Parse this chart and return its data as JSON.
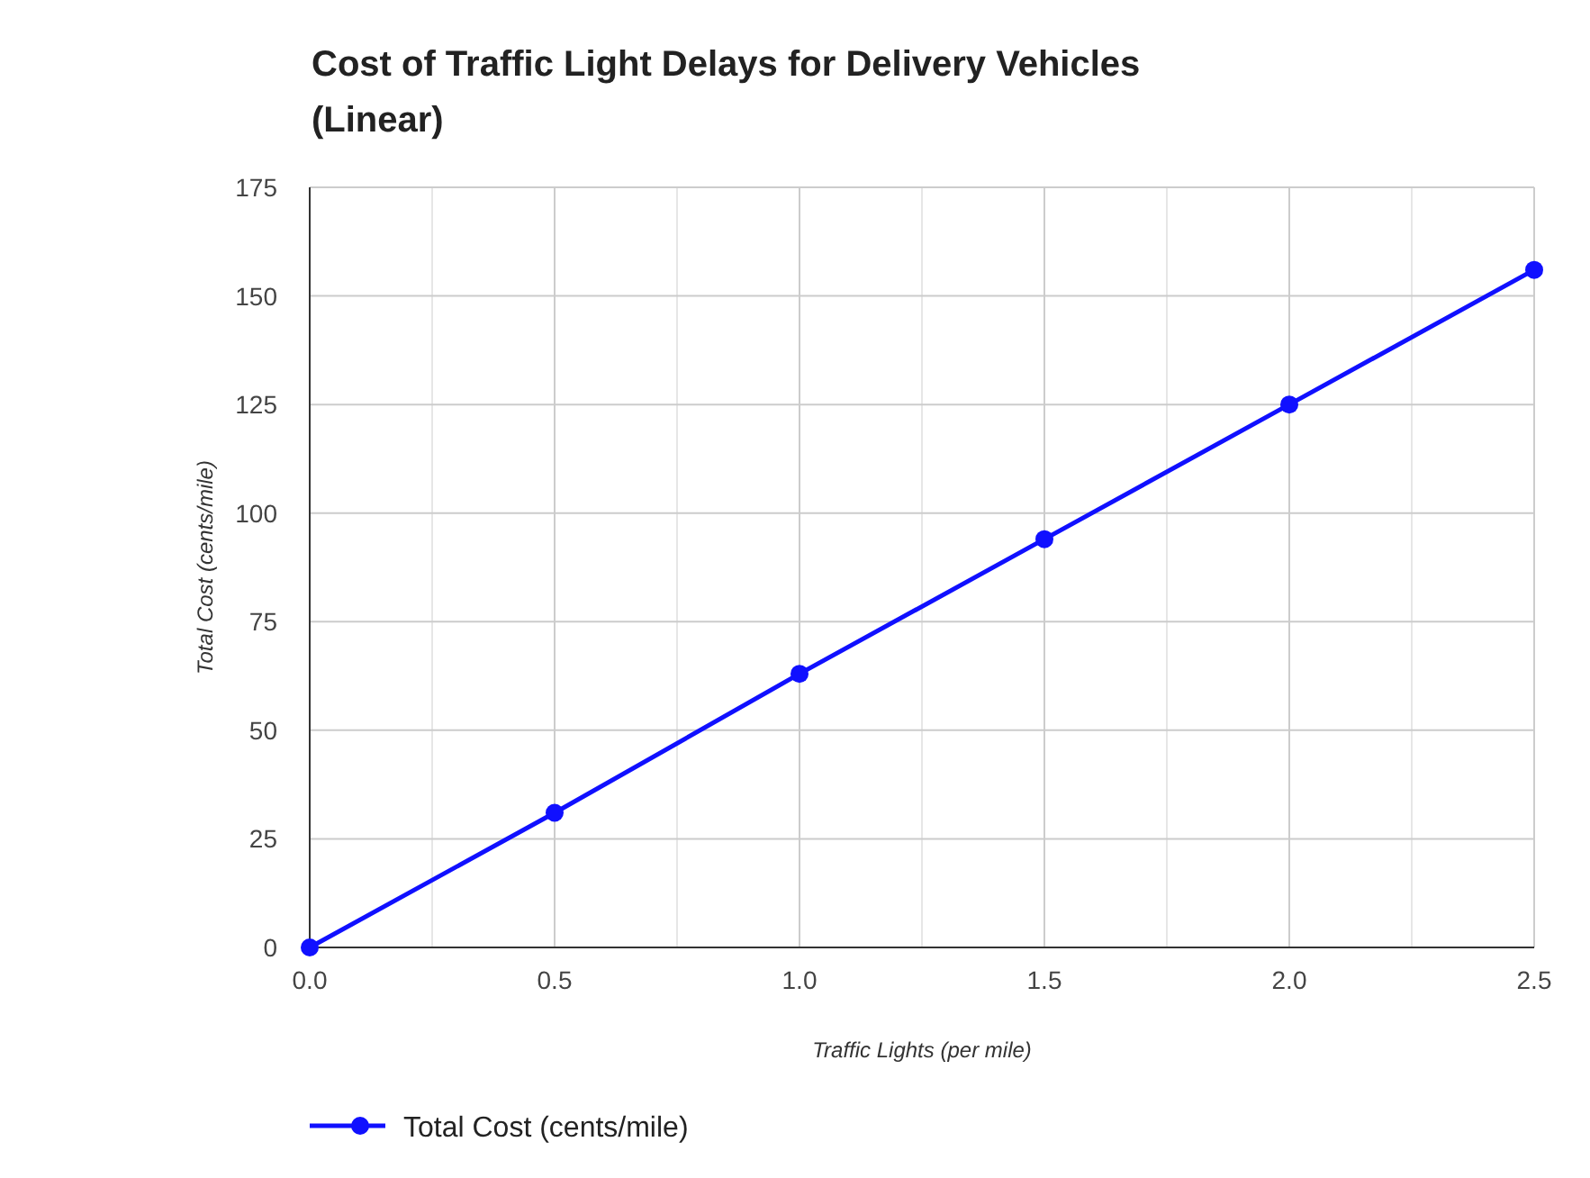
{
  "chart_data": {
    "type": "line",
    "title": "Cost of Traffic Light Delays for Delivery Vehicles (Linear)",
    "xlabel": "Traffic Lights (per mile)",
    "ylabel": "Total Cost (cents/mile)",
    "x": [
      0,
      0.5,
      1,
      1.5,
      2,
      2.5
    ],
    "series": [
      {
        "name": "Total Cost (cents/mile)",
        "color": "#1010ff",
        "values": [
          0,
          31,
          63,
          94,
          125,
          156
        ]
      }
    ],
    "xlim": [
      0,
      2.5
    ],
    "xticks": [
      {
        "value": 0,
        "label": "0.0"
      },
      {
        "value": 0.25,
        "label": null
      },
      {
        "value": 0.5,
        "label": "0.5"
      },
      {
        "value": 0.75,
        "label": null
      },
      {
        "value": 1,
        "label": "1.0"
      },
      {
        "value": 1.25,
        "label": null
      },
      {
        "value": 1.5,
        "label": "1.5"
      },
      {
        "value": 1.75,
        "label": null
      },
      {
        "value": 2,
        "label": "2.0"
      },
      {
        "value": 2.25,
        "label": null
      },
      {
        "value": 2.5,
        "label": "2.5"
      }
    ],
    "ylim": [
      0,
      175
    ],
    "yticks": [
      0,
      25,
      50,
      75,
      100,
      125,
      150,
      175
    ],
    "grid": true,
    "legend": "bottom",
    "marker": "circle",
    "line_style": "solid"
  }
}
